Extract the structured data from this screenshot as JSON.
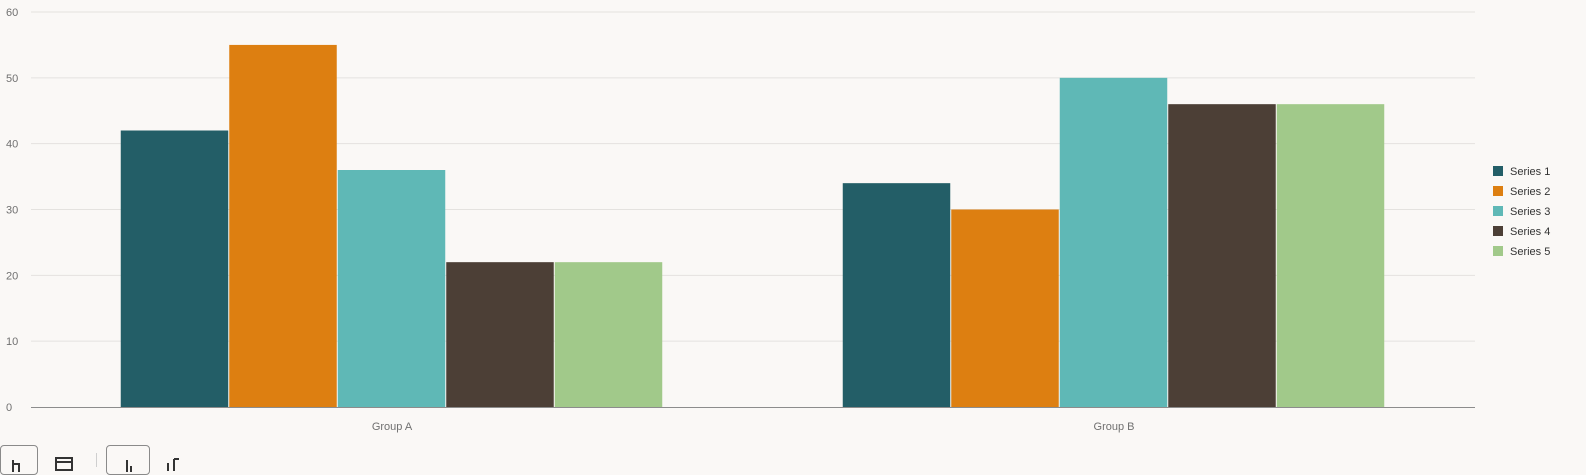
{
  "chart_data": {
    "type": "bar",
    "categories": [
      "Group A",
      "Group B"
    ],
    "series": [
      {
        "name": "Series 1",
        "values": [
          42,
          34
        ],
        "color": "#235e67"
      },
      {
        "name": "Series 2",
        "values": [
          55,
          30
        ],
        "color": "#dd7f11"
      },
      {
        "name": "Series 3",
        "values": [
          36,
          50
        ],
        "color": "#5fb8b6"
      },
      {
        "name": "Series 4",
        "values": [
          22,
          46
        ],
        "color": "#4c3f36"
      },
      {
        "name": "Series 5",
        "values": [
          22,
          46
        ],
        "color": "#a1c98a"
      }
    ],
    "yticks": [
      "0",
      "10",
      "20",
      "30",
      "40",
      "50",
      "60"
    ],
    "ylim": [
      0,
      60
    ],
    "grid": true,
    "legend_position": "right",
    "title": "",
    "xlabel": "",
    "ylabel": ""
  },
  "toolbar": {
    "icons": [
      "bar-chart-icon",
      "table-icon",
      "vertical-bar-icon",
      "horizontal-bar-icon"
    ]
  }
}
